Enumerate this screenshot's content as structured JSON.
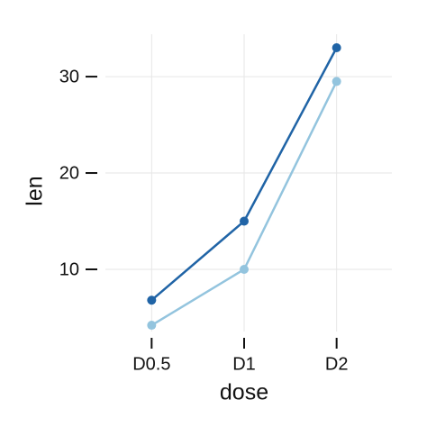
{
  "chart_data": {
    "type": "line",
    "x_label": "dose",
    "y_label": "len",
    "categories": [
      "D0.5",
      "D1",
      "D2"
    ],
    "series": [
      {
        "color": "#2064a6",
        "values": [
          6.8,
          15.0,
          33.0
        ]
      },
      {
        "color": "#93c4de",
        "values": [
          4.2,
          10.0,
          29.5
        ]
      }
    ],
    "ylim": [
      3.55,
      34.4
    ],
    "yticks": [
      10,
      20,
      30
    ],
    "grid": true
  }
}
